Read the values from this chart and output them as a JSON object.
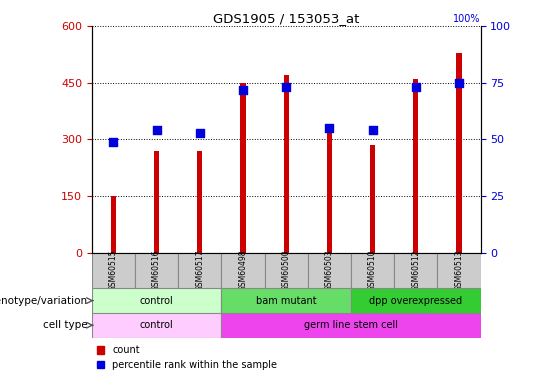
{
  "title": "GDS1905 / 153053_at",
  "samples": [
    "GSM60515",
    "GSM60516",
    "GSM60517",
    "GSM60498",
    "GSM60500",
    "GSM60503",
    "GSM60510",
    "GSM60512",
    "GSM60513"
  ],
  "counts": [
    150,
    270,
    270,
    450,
    470,
    320,
    285,
    460,
    530
  ],
  "percentile_ranks": [
    49,
    54,
    53,
    72,
    73,
    55,
    54,
    73,
    75
  ],
  "ylim_left": [
    0,
    600
  ],
  "ylim_right": [
    0,
    100
  ],
  "yticks_left": [
    0,
    150,
    300,
    450,
    600
  ],
  "yticks_right": [
    0,
    25,
    50,
    75,
    100
  ],
  "bar_color": "#CC0000",
  "dot_color": "#0000DD",
  "axis_color_left": "#CC0000",
  "axis_color_right": "#0000DD",
  "genotype_groups": [
    {
      "label": "control",
      "start": 0,
      "end": 3,
      "color": "#CCFFCC",
      "border": "#888888"
    },
    {
      "label": "bam mutant",
      "start": 3,
      "end": 6,
      "color": "#66DD66",
      "border": "#888888"
    },
    {
      "label": "dpp overexpressed",
      "start": 6,
      "end": 9,
      "color": "#33CC33",
      "border": "#888888"
    }
  ],
  "cell_type_groups": [
    {
      "label": "control",
      "start": 0,
      "end": 3,
      "color": "#FFCCFF",
      "border": "#888888"
    },
    {
      "label": "germ line stem cell",
      "start": 3,
      "end": 9,
      "color": "#EE44EE",
      "border": "#888888"
    }
  ],
  "genotype_label": "genotype/variation",
  "cell_type_label": "cell type",
  "legend_count": "count",
  "legend_percentile": "percentile rank within the sample",
  "bar_width": 0.12,
  "dot_size": 35,
  "sample_box_color": "#CCCCCC",
  "sample_box_border": "#888888"
}
